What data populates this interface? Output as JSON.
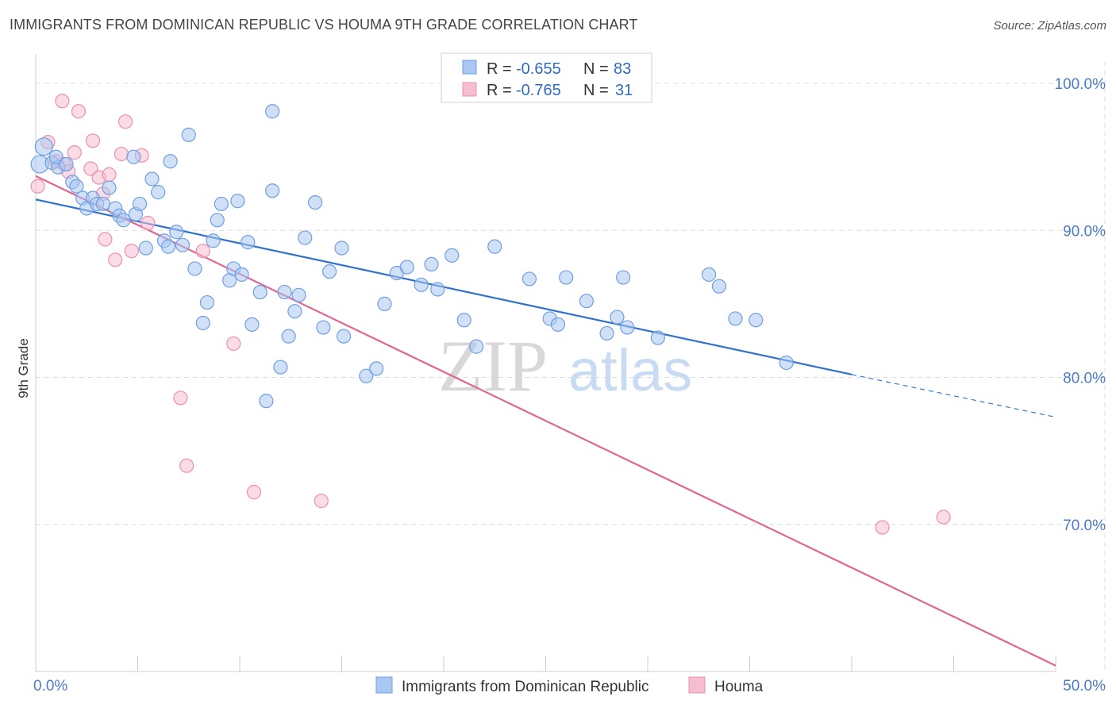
{
  "title": "IMMIGRANTS FROM DOMINICAN REPUBLIC VS HOUMA 9TH GRADE CORRELATION CHART",
  "source": "Source: ZipAtlas.com",
  "watermark": {
    "zip": "ZIP",
    "atlas": "atlas"
  },
  "colors": {
    "blue": "#6f9fe0",
    "blue_fill": "#a9c7f0",
    "blue_line": "#2e72cc",
    "pink": "#ec8fb0",
    "pink_fill": "#f6bdd1",
    "pink_line": "#e26492",
    "grid": "#dddddd",
    "tick_text": "#4a7cc7"
  },
  "legend": {
    "items": [
      {
        "r_label": "R =",
        "r_value": "-0.655",
        "n_label": "N =",
        "n_value": "83"
      },
      {
        "r_label": "R =",
        "r_value": "-0.765",
        "n_label": "N =",
        "n_value": "31"
      }
    ]
  },
  "chart_data": {
    "type": "scatter",
    "title": "IMMIGRANTS FROM DOMINICAN REPUBLIC VS HOUMA 9TH GRADE CORRELATION CHART",
    "xlabel": "",
    "ylabel": "9th Grade",
    "xlim": [
      0,
      50
    ],
    "ylim": [
      60,
      102
    ],
    "x_tick_labels": [
      "0.0%",
      "50.0%"
    ],
    "y_ticks": [
      70,
      80,
      90,
      100
    ],
    "y_tick_labels": [
      "70.0%",
      "80.0%",
      "90.0%",
      "100.0%"
    ],
    "grid": true,
    "legend_position": "bottom",
    "series": [
      {
        "name": "Immigrants from Dominican Republic",
        "color": "#6f9fe0",
        "points": [
          [
            0.2,
            94.5
          ],
          [
            0.4,
            95.7
          ],
          [
            0.8,
            94.6
          ],
          [
            1.1,
            94.3
          ],
          [
            1.0,
            95.0
          ],
          [
            1.5,
            94.5
          ],
          [
            1.8,
            93.3
          ],
          [
            2.0,
            93.0
          ],
          [
            2.3,
            92.2
          ],
          [
            2.5,
            91.5
          ],
          [
            2.8,
            92.2
          ],
          [
            3.0,
            91.8
          ],
          [
            3.3,
            91.8
          ],
          [
            3.6,
            92.9
          ],
          [
            3.9,
            91.5
          ],
          [
            4.1,
            91.0
          ],
          [
            4.3,
            90.7
          ],
          [
            4.8,
            95.0
          ],
          [
            4.9,
            91.1
          ],
          [
            5.1,
            91.8
          ],
          [
            5.4,
            88.8
          ],
          [
            5.7,
            93.5
          ],
          [
            6.0,
            92.6
          ],
          [
            6.3,
            89.3
          ],
          [
            6.5,
            88.9
          ],
          [
            6.6,
            94.7
          ],
          [
            6.9,
            89.9
          ],
          [
            7.2,
            89.0
          ],
          [
            7.5,
            96.5
          ],
          [
            7.8,
            87.4
          ],
          [
            8.2,
            83.7
          ],
          [
            8.4,
            85.1
          ],
          [
            8.7,
            89.3
          ],
          [
            8.9,
            90.7
          ],
          [
            9.1,
            91.8
          ],
          [
            9.5,
            86.6
          ],
          [
            9.7,
            87.4
          ],
          [
            9.9,
            92.0
          ],
          [
            10.1,
            87.0
          ],
          [
            10.4,
            89.2
          ],
          [
            10.6,
            83.6
          ],
          [
            11.0,
            85.8
          ],
          [
            11.3,
            78.4
          ],
          [
            11.6,
            92.7
          ],
          [
            11.6,
            98.1
          ],
          [
            12.0,
            80.7
          ],
          [
            12.2,
            85.8
          ],
          [
            12.4,
            82.8
          ],
          [
            12.7,
            84.5
          ],
          [
            12.9,
            85.6
          ],
          [
            13.2,
            89.5
          ],
          [
            13.7,
            91.9
          ],
          [
            14.1,
            83.4
          ],
          [
            14.4,
            87.2
          ],
          [
            15.0,
            88.8
          ],
          [
            15.1,
            82.8
          ],
          [
            16.2,
            80.1
          ],
          [
            16.7,
            80.6
          ],
          [
            17.1,
            85.0
          ],
          [
            17.7,
            87.1
          ],
          [
            18.2,
            87.5
          ],
          [
            18.9,
            86.3
          ],
          [
            19.4,
            87.7
          ],
          [
            19.7,
            86.0
          ],
          [
            20.4,
            88.3
          ],
          [
            21.0,
            83.9
          ],
          [
            21.6,
            82.1
          ],
          [
            22.5,
            88.9
          ],
          [
            24.2,
            86.7
          ],
          [
            25.2,
            84.0
          ],
          [
            25.6,
            83.6
          ],
          [
            26.0,
            86.8
          ],
          [
            27.0,
            85.2
          ],
          [
            28.0,
            83.0
          ],
          [
            28.5,
            84.1
          ],
          [
            28.8,
            86.8
          ],
          [
            29.0,
            83.4
          ],
          [
            30.5,
            82.7
          ],
          [
            33.0,
            87.0
          ],
          [
            33.5,
            86.2
          ],
          [
            34.3,
            84.0
          ],
          [
            35.3,
            83.9
          ],
          [
            36.8,
            81.0
          ]
        ]
      },
      {
        "name": "Houma",
        "color": "#ec8fb0",
        "points": [
          [
            0.1,
            93.0
          ],
          [
            0.6,
            96.0
          ],
          [
            1.0,
            94.7
          ],
          [
            1.4,
            94.5
          ],
          [
            1.6,
            94.0
          ],
          [
            1.9,
            95.3
          ],
          [
            2.1,
            98.1
          ],
          [
            1.3,
            98.8
          ],
          [
            2.7,
            94.2
          ],
          [
            2.8,
            96.1
          ],
          [
            3.1,
            93.6
          ],
          [
            3.3,
            92.5
          ],
          [
            3.4,
            89.4
          ],
          [
            3.6,
            93.8
          ],
          [
            3.9,
            88.0
          ],
          [
            4.2,
            95.2
          ],
          [
            4.4,
            97.4
          ],
          [
            4.7,
            88.6
          ],
          [
            5.2,
            95.1
          ],
          [
            5.5,
            90.5
          ],
          [
            7.1,
            78.6
          ],
          [
            7.4,
            74.0
          ],
          [
            8.2,
            88.6
          ],
          [
            9.7,
            82.3
          ],
          [
            10.7,
            72.2
          ],
          [
            14.0,
            71.6
          ],
          [
            41.5,
            69.8
          ],
          [
            44.5,
            70.5
          ]
        ]
      }
    ],
    "trend_lines": [
      {
        "series": "Immigrants from Dominican Republic",
        "x": [
          0,
          40
        ],
        "y": [
          92.1,
          80.2
        ],
        "dashed_extension_to_x": 50,
        "dashed_end_y": 77.3
      },
      {
        "series": "Houma",
        "x": [
          0,
          50
        ],
        "y": [
          93.7,
          60.4
        ]
      }
    ]
  }
}
